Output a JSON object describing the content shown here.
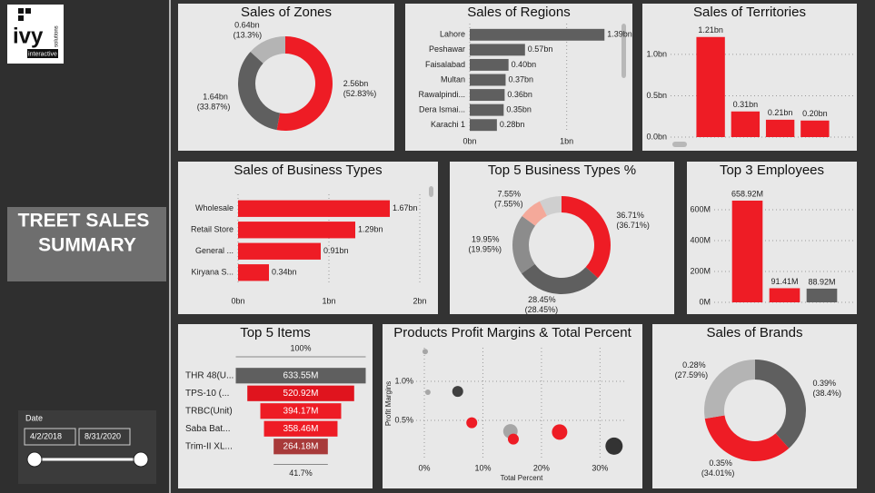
{
  "sidebar": {
    "logo": {
      "brand": "ivy",
      "line": "interactive",
      "side": "solutions"
    },
    "title_lines": [
      "TREET SALES",
      "SUMMARY"
    ],
    "date_filter": {
      "label": "Date",
      "start": "4/2/2018",
      "end": "8/31/2020"
    }
  },
  "chart_data": [
    {
      "type": "donut",
      "title": "Sales of Zones",
      "values": [
        2.56,
        1.64,
        0.64
      ],
      "value_labels": [
        "2.56bn (52.83%)",
        "1.64bn (33.87%)",
        "0.64bn (13.3%)"
      ],
      "colors": [
        "#ee1c25",
        "#5f5f5f",
        "#b4b4b4"
      ]
    },
    {
      "type": "barh",
      "title": "Sales of Regions",
      "categories": [
        "Lahore",
        "Peshawar",
        "Faisalabad",
        "Multan",
        "Rawalpindi...",
        "Dera Ismai...",
        "Karachi 1"
      ],
      "values": [
        1.39,
        0.57,
        0.4,
        0.37,
        0.36,
        0.35,
        0.28
      ],
      "value_labels": [
        "1.39bn",
        "0.57bn",
        "0.40bn",
        "0.37bn",
        "0.36bn",
        "0.35bn",
        "0.28bn"
      ],
      "color": "#5f5f5f",
      "xlim": [
        0,
        1.5
      ],
      "xticks": [
        {
          "value": 0,
          "label": "0bn"
        },
        {
          "value": 1,
          "label": "1bn"
        }
      ],
      "grid": true
    },
    {
      "type": "bar",
      "title": "Sales of Territories",
      "categories": [
        null,
        null,
        null,
        null
      ],
      "values": [
        1.21,
        0.31,
        0.21,
        0.2
      ],
      "value_labels": [
        "1.21bn",
        "0.31bn",
        "0.21bn",
        "0.20bn"
      ],
      "color": "#ee1c25",
      "ylim": [
        0,
        1.35
      ],
      "yticks": [
        {
          "value": 0,
          "label": "0.0bn"
        },
        {
          "value": 0.5,
          "label": "0.5bn"
        },
        {
          "value": 1.0,
          "label": "1.0bn"
        }
      ],
      "grid": true
    },
    {
      "type": "barh",
      "title": "Sales of Business Types",
      "categories": [
        "Wholesale",
        "Retail Store",
        "General ...",
        "Kiryana S..."
      ],
      "values": [
        1.67,
        1.29,
        0.91,
        0.34
      ],
      "value_labels": [
        "1.67bn",
        "1.29bn",
        "0.91bn",
        "0.34bn"
      ],
      "color": "#ee1c25",
      "xlim": [
        0,
        2
      ],
      "xticks": [
        {
          "value": 0,
          "label": "0bn"
        },
        {
          "value": 1,
          "label": "1bn"
        },
        {
          "value": 2,
          "label": "2bn"
        }
      ],
      "grid": true
    },
    {
      "type": "donut",
      "title": "Top 5 Business Types %",
      "values": [
        36.71,
        28.45,
        19.95,
        7.55,
        7.34
      ],
      "value_labels": [
        "36.71% (36.71%)",
        "28.45% (28.45%)",
        "19.95% (19.95%)",
        "7.55% (7.55%)",
        null
      ],
      "colors": [
        "#ee1c25",
        "#5f5f5f",
        "#8c8c8c",
        "#f4a99a",
        "#cfcfcf"
      ]
    },
    {
      "type": "bar",
      "title": "Top 3 Employees",
      "categories": [
        null,
        null,
        null
      ],
      "values": [
        658.92,
        91.41,
        88.92
      ],
      "value_labels": [
        "658.92M",
        "91.41M",
        "88.92M"
      ],
      "colors": [
        "#ee1c25",
        "#ee1c25",
        "#5f5f5f"
      ],
      "ylim": [
        0,
        700
      ],
      "yticks": [
        {
          "value": 0,
          "label": "0M"
        },
        {
          "value": 200,
          "label": "200M"
        },
        {
          "value": 400,
          "label": "400M"
        },
        {
          "value": 600,
          "label": "600M"
        }
      ],
      "grid": true
    },
    {
      "type": "funnel",
      "title": "Top 5 Items",
      "categories": [
        "THR 48(U...",
        "TPS-10 (...",
        "TRBC(Unit)",
        "Saba Bat...",
        "Trim-II XL..."
      ],
      "values": [
        633.55,
        520.92,
        394.17,
        358.46,
        264.18
      ],
      "value_labels": [
        "633.55M",
        "520.92M",
        "394.17M",
        "358.46M",
        "264.18M"
      ],
      "colors": [
        "#5f5f5f",
        "#e0141e",
        "#ee1c25",
        "#ee1c25",
        "#a83a3a"
      ],
      "top_label": "100%",
      "bottom_label": "41.7%"
    },
    {
      "type": "scatter",
      "title": "Products Profit Margins & Total Percent",
      "x_label": "Total Percent",
      "y_label": "Profit Margins",
      "x": [
        0.15,
        0.6,
        5.7,
        8.1,
        14.7,
        15.2,
        23.1,
        32.4
      ],
      "y": [
        1.38,
        0.86,
        0.87,
        0.47,
        0.36,
        0.26,
        0.35,
        0.17
      ],
      "sizes": [
        1,
        1,
        4,
        4,
        7,
        4,
        8,
        10
      ],
      "colors": [
        "#a6a6a6",
        "#a6a6a6",
        "#404040",
        "#ee1c25",
        "#a6a6a6",
        "#ee1c25",
        "#ee1c25",
        "#333333"
      ],
      "xlim": [
        -1.4,
        34.6
      ],
      "ylim": [
        0,
        1.43
      ],
      "xticks": [
        {
          "value": 0,
          "label": "0%"
        },
        {
          "value": 10,
          "label": "10%"
        },
        {
          "value": 20,
          "label": "20%"
        },
        {
          "value": 30,
          "label": "30%"
        }
      ],
      "yticks": [
        {
          "value": 0.5,
          "label": "0.5%"
        },
        {
          "value": 1.0,
          "label": "1.0%"
        }
      ],
      "grid": true
    },
    {
      "type": "donut",
      "title": "Sales of Brands",
      "values": [
        38.4,
        34.01,
        27.59
      ],
      "value_labels": [
        "0.39% (38.4%)",
        "0.35% (34.01%)",
        "0.28% (27.59%)"
      ],
      "colors": [
        "#5f5f5f",
        "#ee1c25",
        "#b4b4b4"
      ]
    }
  ]
}
